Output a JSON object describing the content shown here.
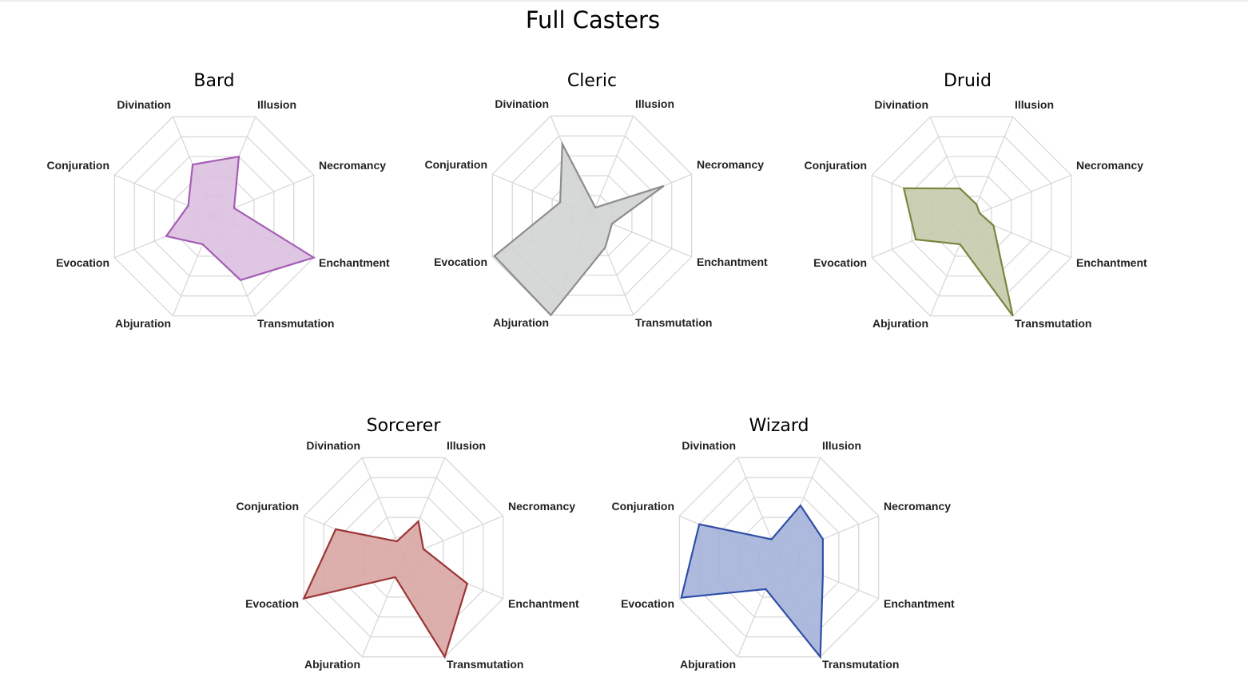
{
  "title": "Full Casters",
  "chart_data": [
    {
      "type": "radar",
      "title": "Bard",
      "axes": [
        "Divination",
        "Illusion",
        "Necromancy",
        "Enchantment",
        "Transmutation",
        "Abjuration",
        "Evocation",
        "Conjuration"
      ],
      "values": [
        2.6,
        3.0,
        1.0,
        5.0,
        3.2,
        1.4,
        2.4,
        1.3
      ],
      "rmax": 5,
      "color": "#a55eb4",
      "fill": "#dcc1e0"
    },
    {
      "type": "radar",
      "title": "Cleric",
      "axes": [
        "Divination",
        "Illusion",
        "Necromancy",
        "Enchantment",
        "Transmutation",
        "Abjuration",
        "Evocation",
        "Conjuration"
      ],
      "values": [
        3.6,
        0.4,
        3.6,
        1.0,
        1.6,
        5.0,
        4.9,
        1.6
      ],
      "rmax": 5,
      "color": "#8c8c8c",
      "fill": "#d2d4d3"
    },
    {
      "type": "radar",
      "title": "Druid",
      "axes": [
        "Divination",
        "Illusion",
        "Necromancy",
        "Enchantment",
        "Transmutation",
        "Abjuration",
        "Evocation",
        "Conjuration"
      ],
      "values": [
        1.4,
        0.6,
        0.4,
        1.1,
        5.0,
        1.4,
        2.8,
        3.4
      ],
      "rmax": 5,
      "color": "#76873f",
      "fill": "#c5cbac"
    },
    {
      "type": "radar",
      "title": "Sorcerer",
      "axes": [
        "Divination",
        "Illusion",
        "Necromancy",
        "Enchantment",
        "Transmutation",
        "Abjuration",
        "Evocation",
        "Conjuration"
      ],
      "values": [
        0.8,
        1.8,
        1.0,
        3.2,
        5.0,
        1.0,
        5.0,
        3.4
      ],
      "rmax": 5,
      "color": "#9c3535",
      "fill": "#d8a5a3"
    },
    {
      "type": "radar",
      "title": "Wizard",
      "axes": [
        "Divination",
        "Illusion",
        "Necromancy",
        "Enchantment",
        "Transmutation",
        "Abjuration",
        "Evocation",
        "Conjuration"
      ],
      "values": [
        0.9,
        2.6,
        2.2,
        2.2,
        5.0,
        1.6,
        4.9,
        4.0
      ],
      "rmax": 5,
      "color": "#2f4fa6",
      "fill": "#a5b3d9"
    }
  ]
}
